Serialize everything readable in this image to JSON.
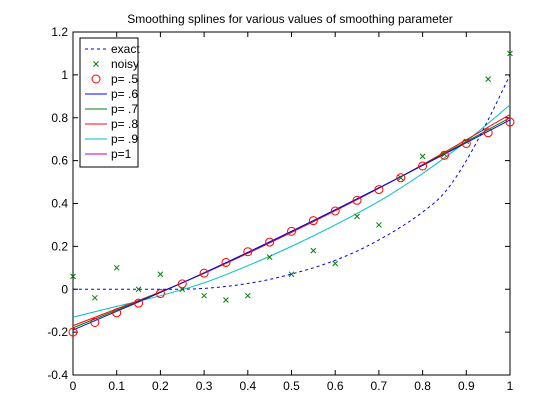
{
  "chart_data": {
    "type": "line",
    "title": "Smoothing splines for various values of smoothing parameter",
    "xlabel": "",
    "ylabel": "",
    "xlim": [
      0,
      1
    ],
    "ylim": [
      -0.4,
      1.2
    ],
    "x_ticks": [
      0,
      0.1,
      0.2,
      0.3,
      0.4,
      0.5,
      0.6,
      0.7,
      0.8,
      0.9,
      1
    ],
    "x_tick_labels": [
      "0",
      "0.1",
      "0.2",
      "0.3",
      "0.4",
      "0.5",
      "0.6",
      "0.7",
      "0.8",
      "0.9",
      "1"
    ],
    "y_ticks": [
      -0.4,
      -0.2,
      0,
      0.2,
      0.4,
      0.6,
      0.8,
      1,
      1.2
    ],
    "y_tick_labels": [
      "-0.4",
      "-0.2",
      "0",
      "0.2",
      "0.4",
      "0.6",
      "0.8",
      "1",
      "1.2"
    ],
    "grid": false,
    "legend_position": "top-left",
    "x": [
      0,
      0.05,
      0.1,
      0.15,
      0.2,
      0.25,
      0.3,
      0.35,
      0.4,
      0.45,
      0.5,
      0.55,
      0.6,
      0.65,
      0.7,
      0.75,
      0.8,
      0.85,
      0.9,
      0.95,
      1
    ],
    "series": [
      {
        "name": "exact",
        "style": "dashed",
        "color": "#0000ff",
        "x": [
          0,
          0.05,
          0.1,
          0.15,
          0.2,
          0.25,
          0.3,
          0.35,
          0.4,
          0.45,
          0.5,
          0.55,
          0.6,
          0.65,
          0.7,
          0.75,
          0.8,
          0.85,
          0.9,
          0.95,
          1
        ],
        "values": [
          0,
          0,
          0,
          0,
          0,
          0,
          0.004,
          0.013,
          0.027,
          0.046,
          0.071,
          0.1,
          0.135,
          0.178,
          0.23,
          0.29,
          0.36,
          0.45,
          0.6,
          0.79,
          1.0
        ]
      },
      {
        "name": "noisy",
        "style": "marker-x",
        "color": "#008000",
        "x": [
          0,
          0.05,
          0.1,
          0.15,
          0.2,
          0.25,
          0.3,
          0.35,
          0.4,
          0.45,
          0.5,
          0.55,
          0.6,
          0.65,
          0.7,
          0.75,
          0.8,
          0.85,
          0.9,
          0.95,
          1
        ],
        "values": [
          0.06,
          -0.04,
          0.1,
          0.0,
          0.07,
          0.0,
          -0.03,
          -0.05,
          -0.03,
          0.15,
          0.07,
          0.18,
          0.12,
          0.34,
          0.3,
          0.52,
          0.62,
          0.63,
          0.69,
          0.98,
          1.1
        ]
      },
      {
        "name": "p= .5",
        "style": "marker-circle",
        "color": "#ff0000",
        "x": [
          0,
          0.05,
          0.1,
          0.15,
          0.2,
          0.25,
          0.3,
          0.35,
          0.4,
          0.45,
          0.5,
          0.55,
          0.6,
          0.65,
          0.7,
          0.75,
          0.8,
          0.85,
          0.9,
          0.95,
          1
        ],
        "values": [
          -0.2,
          -0.155,
          -0.11,
          -0.065,
          -0.02,
          0.025,
          0.075,
          0.125,
          0.175,
          0.22,
          0.27,
          0.32,
          0.365,
          0.415,
          0.465,
          0.52,
          0.575,
          0.625,
          0.68,
          0.73,
          0.78
        ]
      },
      {
        "name": "p= .6",
        "style": "solid",
        "color": "#0000ff",
        "x": [
          0,
          0.25,
          0.5,
          0.75,
          1
        ],
        "values": [
          -0.19,
          0.03,
          0.27,
          0.525,
          0.79
        ]
      },
      {
        "name": "p= .7",
        "style": "solid",
        "color": "#008000",
        "x": [
          0,
          0.25,
          0.5,
          0.75,
          1
        ],
        "values": [
          -0.18,
          0.03,
          0.27,
          0.525,
          0.8
        ]
      },
      {
        "name": "p= .8",
        "style": "solid",
        "color": "#ff0000",
        "x": [
          0,
          0.25,
          0.5,
          0.75,
          1
        ],
        "values": [
          -0.17,
          0.03,
          0.265,
          0.525,
          0.815
        ]
      },
      {
        "name": "p= .9",
        "style": "solid",
        "color": "#00bfbf",
        "x": [
          0,
          0.1,
          0.2,
          0.3,
          0.4,
          0.5,
          0.6,
          0.7,
          0.8,
          0.9,
          1
        ],
        "values": [
          -0.13,
          -0.08,
          -0.03,
          0.03,
          0.11,
          0.2,
          0.3,
          0.41,
          0.54,
          0.69,
          0.86
        ]
      },
      {
        "name": "p=1",
        "style": "solid",
        "color": "#bf00bf",
        "x": [
          0,
          0.025,
          0.05,
          0.075,
          0.1,
          0.125,
          0.15,
          0.175,
          0.2,
          0.225,
          0.25,
          0.275,
          0.3,
          0.325,
          0.35,
          0.375,
          0.4,
          0.425,
          0.45,
          0.475,
          0.5,
          0.525,
          0.55,
          0.575,
          0.6,
          0.625,
          0.65,
          0.675,
          0.7,
          0.725,
          0.75,
          0.775,
          0.8,
          0.825,
          0.85,
          0.875,
          0.9,
          0.925,
          0.95,
          0.975,
          1
        ],
        "values": [
          0.06,
          -0.02,
          -0.04,
          0.04,
          0.1,
          0.06,
          0.0,
          0.03,
          0.07,
          0.04,
          0.0,
          -0.03,
          -0.03,
          -0.03,
          -0.05,
          -0.06,
          -0.03,
          0.06,
          0.15,
          0.12,
          0.07,
          0.12,
          0.18,
          0.16,
          0.12,
          0.22,
          0.34,
          0.35,
          0.3,
          0.4,
          0.52,
          0.59,
          0.62,
          0.63,
          0.63,
          0.65,
          0.69,
          0.82,
          0.98,
          1.05,
          1.1
        ]
      }
    ]
  }
}
